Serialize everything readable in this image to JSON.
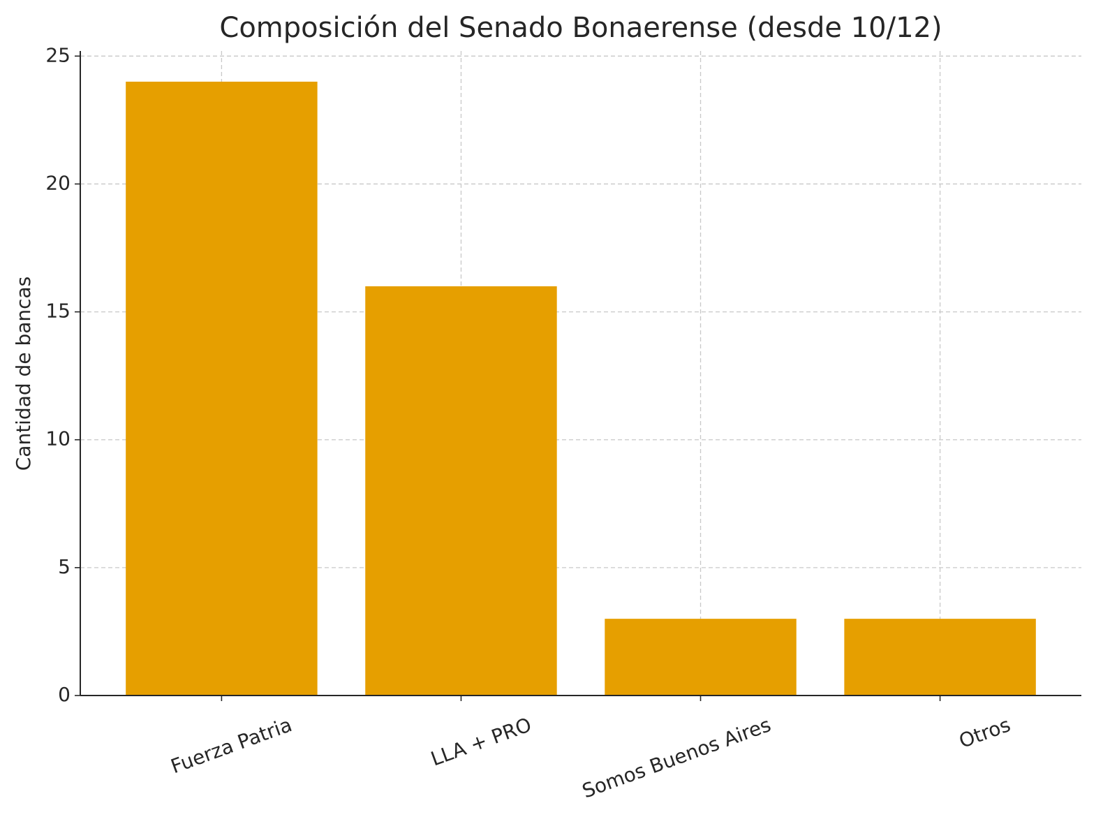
{
  "chart_data": {
    "type": "bar",
    "title": "Composición del Senado Bonaerense (desde 10/12)",
    "ylabel": "Cantidad de bancas",
    "categories": [
      "Fuerza Patria",
      "LLA + PRO",
      "Somos Buenos Aires",
      "Otros"
    ],
    "values": [
      24,
      16,
      3,
      3
    ],
    "color": "#e69f00",
    "ylim": [
      0,
      25.2
    ],
    "yticks": [
      0,
      5,
      10,
      15,
      20,
      25
    ],
    "grid": true
  }
}
